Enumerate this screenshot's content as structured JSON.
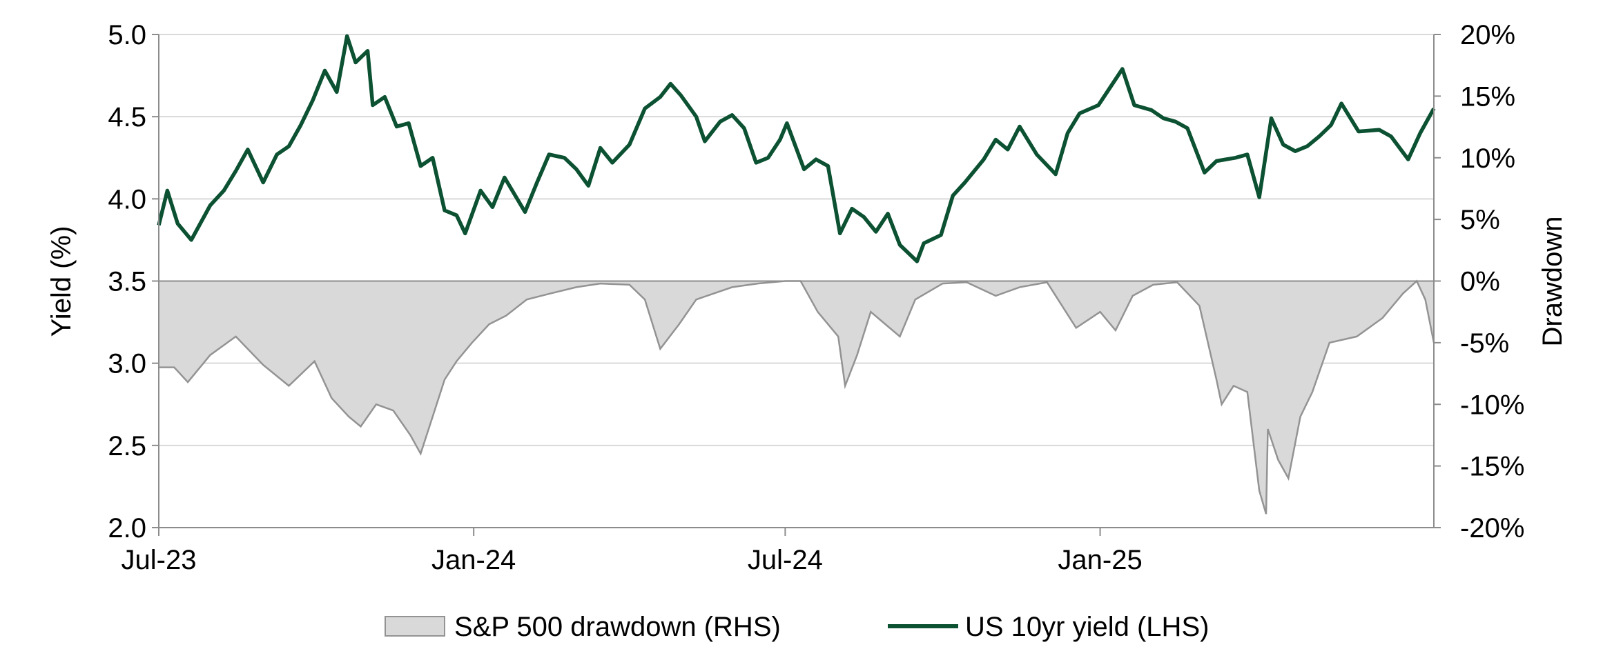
{
  "chart_data": {
    "type": "line",
    "title": "",
    "xlabel": "",
    "ylabel_left": "Yield (%)",
    "ylabel_right": "Drawdown",
    "x_ticks": [
      "Jul-23",
      "Jan-24",
      "Jul-24",
      "Jan-25"
    ],
    "y_left_ticks": [
      "2.0",
      "2.5",
      "3.0",
      "3.5",
      "4.0",
      "4.5",
      "5.0"
    ],
    "y_right_ticks": [
      "-20%",
      "-15%",
      "-10%",
      "-5%",
      "0%",
      "5%",
      "10%",
      "15%",
      "20%"
    ],
    "y_left_range": [
      2.0,
      5.0
    ],
    "y_right_range": [
      -20,
      20
    ],
    "x_range": [
      "2023-07-01",
      "2025-07-15"
    ],
    "grid": true,
    "legend_position": "bottom-center",
    "colors": {
      "yield": "#0b5132",
      "drawdown_fill": "#d9d9d9",
      "drawdown_line": "#939393"
    },
    "series": [
      {
        "name": "S&P 500 drawdown (RHS)",
        "kind": "area",
        "axis": "right",
        "points": [
          [
            "2023-07-01",
            -7.0
          ],
          [
            "2023-07-10",
            -7.0
          ],
          [
            "2023-07-18",
            -8.2
          ],
          [
            "2023-07-31",
            -6.0
          ],
          [
            "2023-08-15",
            -4.5
          ],
          [
            "2023-08-31",
            -6.8
          ],
          [
            "2023-09-15",
            -8.5
          ],
          [
            "2023-09-30",
            -6.5
          ],
          [
            "2023-10-10",
            -9.5
          ],
          [
            "2023-10-20",
            -11.0
          ],
          [
            "2023-10-27",
            -11.8
          ],
          [
            "2023-11-05",
            -10.0
          ],
          [
            "2023-11-15",
            -10.5
          ],
          [
            "2023-11-25",
            -12.5
          ],
          [
            "2023-12-01",
            -14.0
          ],
          [
            "2023-12-08",
            -11.0
          ],
          [
            "2023-12-15",
            -8.0
          ],
          [
            "2023-12-22",
            -6.5
          ],
          [
            "2023-12-31",
            -5.0
          ],
          [
            "2024-01-10",
            -3.5
          ],
          [
            "2024-01-20",
            -2.8
          ],
          [
            "2024-02-01",
            -1.5
          ],
          [
            "2024-02-15",
            -1.0
          ],
          [
            "2024-03-01",
            -0.5
          ],
          [
            "2024-03-15",
            -0.2
          ],
          [
            "2024-04-01",
            -0.3
          ],
          [
            "2024-04-10",
            -1.5
          ],
          [
            "2024-04-19",
            -5.5
          ],
          [
            "2024-04-30",
            -3.5
          ],
          [
            "2024-05-10",
            -1.5
          ],
          [
            "2024-05-31",
            -0.5
          ],
          [
            "2024-06-15",
            -0.2
          ],
          [
            "2024-07-01",
            0.0
          ],
          [
            "2024-07-10",
            0.0
          ],
          [
            "2024-07-20",
            -2.5
          ],
          [
            "2024-08-01",
            -4.5
          ],
          [
            "2024-08-05",
            -8.5
          ],
          [
            "2024-08-12",
            -6.0
          ],
          [
            "2024-08-20",
            -2.5
          ],
          [
            "2024-09-06",
            -4.5
          ],
          [
            "2024-09-15",
            -1.5
          ],
          [
            "2024-10-01",
            -0.2
          ],
          [
            "2024-10-15",
            -0.1
          ],
          [
            "2024-11-01",
            -1.2
          ],
          [
            "2024-11-15",
            -0.5
          ],
          [
            "2024-12-01",
            -0.1
          ],
          [
            "2024-12-18",
            -3.8
          ],
          [
            "2025-01-01",
            -2.5
          ],
          [
            "2025-01-10",
            -4.0
          ],
          [
            "2025-01-20",
            -1.2
          ],
          [
            "2025-02-01",
            -0.3
          ],
          [
            "2025-02-15",
            -0.1
          ],
          [
            "2025-02-28",
            -2.0
          ],
          [
            "2025-03-10",
            -8.0
          ],
          [
            "2025-03-13",
            -10.0
          ],
          [
            "2025-03-20",
            -8.5
          ],
          [
            "2025-03-28",
            -9.0
          ],
          [
            "2025-04-04",
            -17.0
          ],
          [
            "2025-04-08",
            -18.9
          ],
          [
            "2025-04-09",
            -12.0
          ],
          [
            "2025-04-15",
            -14.5
          ],
          [
            "2025-04-21",
            -16.0
          ],
          [
            "2025-04-28",
            -11.0
          ],
          [
            "2025-05-05",
            -9.0
          ],
          [
            "2025-05-15",
            -5.0
          ],
          [
            "2025-05-31",
            -4.5
          ],
          [
            "2025-06-15",
            -3.0
          ],
          [
            "2025-06-27",
            -1.0
          ],
          [
            "2025-07-05",
            0.0
          ],
          [
            "2025-07-10",
            -1.5
          ],
          [
            "2025-07-15",
            -5.0
          ]
        ]
      },
      {
        "name": "US 10yr yield (LHS)",
        "kind": "line",
        "axis": "left",
        "points": [
          [
            "2023-07-01",
            3.84
          ],
          [
            "2023-07-06",
            4.05
          ],
          [
            "2023-07-12",
            3.85
          ],
          [
            "2023-07-20",
            3.75
          ],
          [
            "2023-07-31",
            3.96
          ],
          [
            "2023-08-08",
            4.05
          ],
          [
            "2023-08-15",
            4.17
          ],
          [
            "2023-08-22",
            4.3
          ],
          [
            "2023-08-31",
            4.1
          ],
          [
            "2023-09-08",
            4.27
          ],
          [
            "2023-09-15",
            4.32
          ],
          [
            "2023-09-22",
            4.45
          ],
          [
            "2023-09-29",
            4.6
          ],
          [
            "2023-10-06",
            4.78
          ],
          [
            "2023-10-13",
            4.65
          ],
          [
            "2023-10-19",
            4.99
          ],
          [
            "2023-10-24",
            4.83
          ],
          [
            "2023-10-31",
            4.9
          ],
          [
            "2023-11-03",
            4.57
          ],
          [
            "2023-11-10",
            4.62
          ],
          [
            "2023-11-17",
            4.44
          ],
          [
            "2023-11-24",
            4.46
          ],
          [
            "2023-12-01",
            4.2
          ],
          [
            "2023-12-08",
            4.25
          ],
          [
            "2023-12-15",
            3.93
          ],
          [
            "2023-12-22",
            3.9
          ],
          [
            "2023-12-27",
            3.79
          ],
          [
            "2024-01-05",
            4.05
          ],
          [
            "2024-01-12",
            3.95
          ],
          [
            "2024-01-19",
            4.13
          ],
          [
            "2024-01-31",
            3.92
          ],
          [
            "2024-02-07",
            4.1
          ],
          [
            "2024-02-14",
            4.27
          ],
          [
            "2024-02-23",
            4.25
          ],
          [
            "2024-03-01",
            4.18
          ],
          [
            "2024-03-08",
            4.08
          ],
          [
            "2024-03-15",
            4.31
          ],
          [
            "2024-03-22",
            4.22
          ],
          [
            "2024-04-01",
            4.33
          ],
          [
            "2024-04-10",
            4.55
          ],
          [
            "2024-04-19",
            4.62
          ],
          [
            "2024-04-25",
            4.7
          ],
          [
            "2024-05-01",
            4.63
          ],
          [
            "2024-05-10",
            4.5
          ],
          [
            "2024-05-15",
            4.35
          ],
          [
            "2024-05-24",
            4.47
          ],
          [
            "2024-05-31",
            4.51
          ],
          [
            "2024-06-07",
            4.43
          ],
          [
            "2024-06-14",
            4.22
          ],
          [
            "2024-06-21",
            4.25
          ],
          [
            "2024-06-28",
            4.36
          ],
          [
            "2024-07-02",
            4.46
          ],
          [
            "2024-07-12",
            4.18
          ],
          [
            "2024-07-19",
            4.24
          ],
          [
            "2024-07-26",
            4.2
          ],
          [
            "2024-08-02",
            3.79
          ],
          [
            "2024-08-09",
            3.94
          ],
          [
            "2024-08-16",
            3.89
          ],
          [
            "2024-08-23",
            3.8
          ],
          [
            "2024-08-30",
            3.91
          ],
          [
            "2024-09-06",
            3.72
          ],
          [
            "2024-09-16",
            3.62
          ],
          [
            "2024-09-20",
            3.73
          ],
          [
            "2024-09-30",
            3.78
          ],
          [
            "2024-10-07",
            4.02
          ],
          [
            "2024-10-14",
            4.1
          ],
          [
            "2024-10-25",
            4.24
          ],
          [
            "2024-11-01",
            4.36
          ],
          [
            "2024-11-08",
            4.3
          ],
          [
            "2024-11-15",
            4.44
          ],
          [
            "2024-11-25",
            4.27
          ],
          [
            "2024-12-06",
            4.15
          ],
          [
            "2024-12-13",
            4.4
          ],
          [
            "2024-12-20",
            4.52
          ],
          [
            "2024-12-31",
            4.57
          ],
          [
            "2025-01-07",
            4.68
          ],
          [
            "2025-01-14",
            4.79
          ],
          [
            "2025-01-21",
            4.57
          ],
          [
            "2025-01-31",
            4.54
          ],
          [
            "2025-02-07",
            4.49
          ],
          [
            "2025-02-14",
            4.47
          ],
          [
            "2025-02-21",
            4.43
          ],
          [
            "2025-03-03",
            4.16
          ],
          [
            "2025-03-10",
            4.23
          ],
          [
            "2025-03-21",
            4.25
          ],
          [
            "2025-03-28",
            4.27
          ],
          [
            "2025-04-04",
            4.01
          ],
          [
            "2025-04-11",
            4.49
          ],
          [
            "2025-04-18",
            4.33
          ],
          [
            "2025-04-25",
            4.29
          ],
          [
            "2025-05-02",
            4.32
          ],
          [
            "2025-05-09",
            4.38
          ],
          [
            "2025-05-16",
            4.45
          ],
          [
            "2025-05-22",
            4.58
          ],
          [
            "2025-06-01",
            4.41
          ],
          [
            "2025-06-13",
            4.42
          ],
          [
            "2025-06-20",
            4.38
          ],
          [
            "2025-06-30",
            4.24
          ],
          [
            "2025-07-07",
            4.4
          ],
          [
            "2025-07-15",
            4.55
          ]
        ]
      }
    ]
  }
}
